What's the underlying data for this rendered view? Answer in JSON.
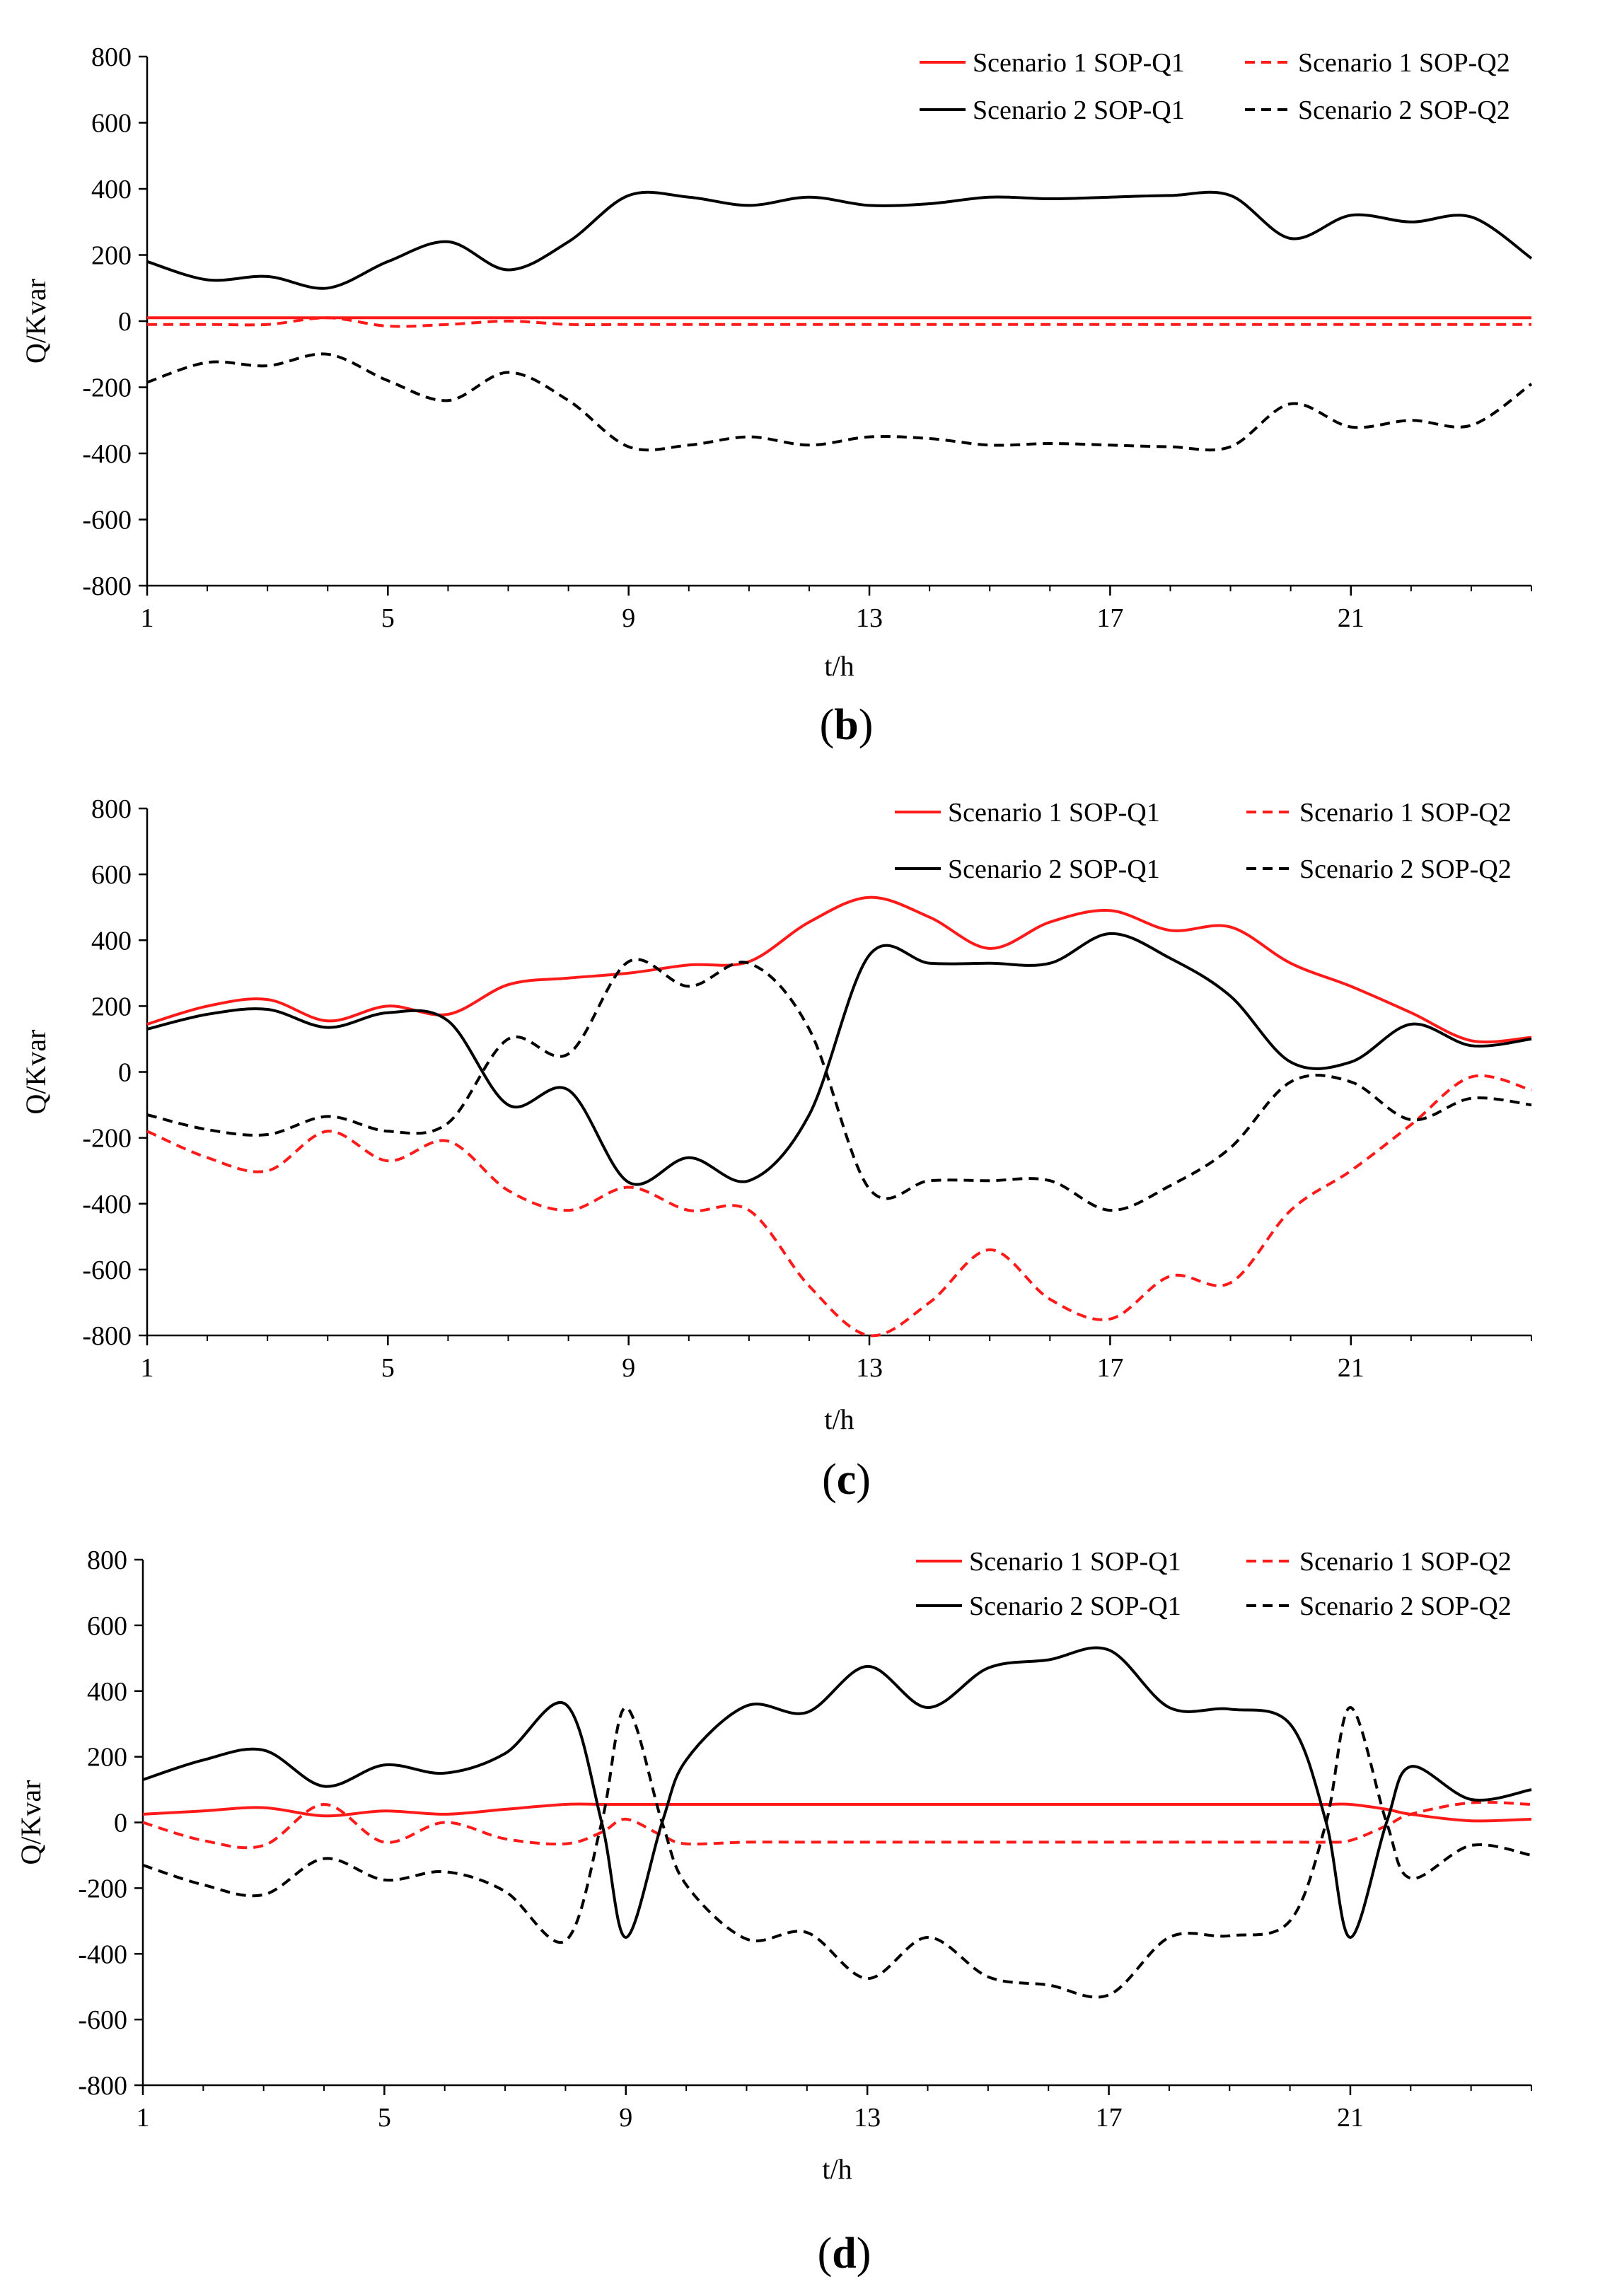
{
  "chart_data": [
    {
      "type": "line",
      "panel_label": "b",
      "xlabel": "t/h",
      "ylabel": "Q/Kvar",
      "xlim": [
        1,
        24
      ],
      "ylim": [
        -800,
        800
      ],
      "x_ticks": [
        1,
        5,
        9,
        13,
        17,
        21
      ],
      "y_ticks": [
        800,
        600,
        400,
        200,
        0,
        -200,
        -400,
        -600,
        -800
      ],
      "colors": {
        "scenario1": "#ff1a1a",
        "scenario2": "#000000"
      },
      "x": [
        1,
        2,
        3,
        4,
        5,
        6,
        7,
        8,
        9,
        10,
        11,
        12,
        13,
        14,
        15,
        16,
        17,
        18,
        19,
        20,
        21,
        22,
        23,
        24
      ],
      "series": [
        {
          "name": "Scenario 1 SOP-Q1",
          "color": "#ff1a1a",
          "dash": false,
          "values": [
            10,
            10,
            10,
            10,
            10,
            10,
            10,
            10,
            10,
            10,
            10,
            10,
            10,
            10,
            10,
            10,
            10,
            10,
            10,
            10,
            10,
            10,
            10,
            10
          ]
        },
        {
          "name": "Scenario 1 SOP-Q2",
          "color": "#ff1a1a",
          "dash": true,
          "values": [
            -10,
            -10,
            -10,
            10,
            -15,
            -10,
            0,
            -10,
            -10,
            -10,
            -10,
            -10,
            -10,
            -10,
            -10,
            -10,
            -10,
            -10,
            -10,
            -10,
            -10,
            -10,
            -10,
            -10
          ]
        },
        {
          "name": "Scenario 2 SOP-Q1",
          "color": "#000000",
          "dash": false,
          "values": [
            180,
            125,
            135,
            100,
            180,
            240,
            155,
            240,
            380,
            375,
            350,
            375,
            350,
            355,
            375,
            370,
            375,
            380,
            380,
            250,
            320,
            300,
            315,
            190
          ]
        },
        {
          "name": "Scenario 2 SOP-Q2",
          "color": "#000000",
          "dash": true,
          "values": [
            -185,
            -125,
            -135,
            -100,
            -180,
            -240,
            -155,
            -240,
            -380,
            -375,
            -350,
            -375,
            -350,
            -355,
            -375,
            -370,
            -375,
            -380,
            -380,
            -250,
            -320,
            -300,
            -315,
            -190
          ]
        }
      ]
    },
    {
      "type": "line",
      "panel_label": "c",
      "xlabel": "t/h",
      "ylabel": "Q/Kvar",
      "xlim": [
        1,
        24
      ],
      "ylim": [
        -800,
        800
      ],
      "x_ticks": [
        1,
        5,
        9,
        13,
        17,
        21
      ],
      "y_ticks": [
        800,
        600,
        400,
        200,
        0,
        -200,
        -400,
        -600,
        -800
      ],
      "colors": {
        "scenario1": "#ff1a1a",
        "scenario2": "#000000"
      },
      "x": [
        1,
        2,
        3,
        4,
        5,
        6,
        7,
        8,
        9,
        10,
        11,
        12,
        13,
        14,
        15,
        16,
        17,
        18,
        19,
        20,
        21,
        22,
        23,
        24
      ],
      "series": [
        {
          "name": "Scenario 1 SOP-Q1",
          "color": "#ff1a1a",
          "dash": false,
          "values": [
            145,
            200,
            220,
            155,
            200,
            175,
            265,
            285,
            300,
            325,
            335,
            455,
            530,
            470,
            375,
            455,
            490,
            430,
            440,
            330,
            260,
            180,
            95,
            105
          ]
        },
        {
          "name": "Scenario 1 SOP-Q2",
          "color": "#ff1a1a",
          "dash": true,
          "values": [
            -180,
            -260,
            -300,
            -180,
            -270,
            -210,
            -360,
            -420,
            -350,
            -420,
            -420,
            -650,
            -800,
            -700,
            -540,
            -690,
            -750,
            -620,
            -640,
            -420,
            -300,
            -160,
            -15,
            -55
          ]
        },
        {
          "name": "Scenario 2 SOP-Q1",
          "color": "#000000",
          "dash": false,
          "values": [
            130,
            175,
            190,
            135,
            180,
            155,
            -100,
            -55,
            -335,
            -260,
            -330,
            -130,
            355,
            330,
            330,
            330,
            420,
            345,
            230,
            30,
            30,
            145,
            80,
            100
          ]
        },
        {
          "name": "Scenario 2 SOP-Q2",
          "color": "#000000",
          "dash": true,
          "values": [
            -130,
            -175,
            -190,
            -135,
            -180,
            -155,
            100,
            55,
            335,
            260,
            330,
            130,
            -355,
            -330,
            -330,
            -330,
            -420,
            -345,
            -230,
            -30,
            -30,
            -145,
            -80,
            -100
          ]
        }
      ]
    },
    {
      "type": "line",
      "panel_label": "d",
      "xlabel": "t/h",
      "ylabel": "Q/Kvar",
      "xlim": [
        1,
        24
      ],
      "ylim": [
        -800,
        800
      ],
      "x_ticks": [
        1,
        5,
        9,
        13,
        17,
        21
      ],
      "y_ticks": [
        800,
        600,
        400,
        200,
        0,
        -200,
        -400,
        -600,
        -800
      ],
      "colors": {
        "scenario1": "#ff1a1a",
        "scenario2": "#000000"
      },
      "x": [
        1,
        2,
        3,
        4,
        5,
        6,
        7,
        8,
        8.6,
        9,
        9.6,
        10,
        11,
        12,
        13,
        14,
        15,
        16,
        17,
        18,
        19,
        20,
        20.6,
        21,
        21.6,
        22,
        23,
        24
      ],
      "series": [
        {
          "name": "Scenario 1 SOP-Q1",
          "color": "#ff1a1a",
          "dash": false,
          "values": [
            25,
            35,
            45,
            20,
            35,
            25,
            40,
            55,
            55,
            55,
            55,
            55,
            55,
            55,
            55,
            55,
            55,
            55,
            55,
            55,
            55,
            55,
            55,
            55,
            40,
            25,
            5,
            10
          ]
        },
        {
          "name": "Scenario 1 SOP-Q2",
          "color": "#ff1a1a",
          "dash": true,
          "values": [
            0,
            -55,
            -70,
            55,
            -60,
            0,
            -50,
            -65,
            -30,
            10,
            -40,
            -65,
            -60,
            -60,
            -60,
            -60,
            -60,
            -60,
            -60,
            -60,
            -60,
            -60,
            -60,
            -55,
            -10,
            25,
            60,
            55
          ]
        },
        {
          "name": "Scenario 2 SOP-Q1",
          "color": "#000000",
          "dash": false,
          "values": [
            130,
            190,
            220,
            110,
            175,
            150,
            210,
            360,
            0,
            -350,
            0,
            190,
            355,
            335,
            475,
            350,
            470,
            495,
            525,
            350,
            345,
            300,
            0,
            -350,
            0,
            170,
            70,
            100
          ]
        },
        {
          "name": "Scenario 2 SOP-Q2",
          "color": "#000000",
          "dash": true,
          "values": [
            -130,
            -190,
            -220,
            -110,
            -175,
            -150,
            -210,
            -360,
            0,
            350,
            0,
            -190,
            -355,
            -335,
            -475,
            -350,
            -470,
            -495,
            -525,
            -350,
            -345,
            -300,
            0,
            350,
            0,
            -170,
            -70,
            -100
          ]
        }
      ]
    }
  ]
}
